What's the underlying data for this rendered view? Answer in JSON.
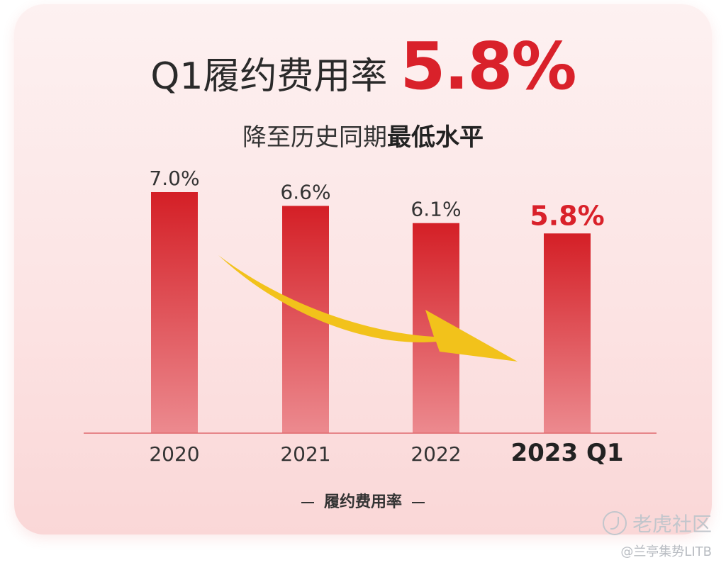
{
  "title": {
    "text": "Q1履约费用率",
    "value": "5.8%"
  },
  "subtitle": {
    "normal": "降至历史同期",
    "bold": "最低水平"
  },
  "legend_label": "履约费用率",
  "watermark": {
    "brand": "老虎社区",
    "credit": "@兰亭集势LITB"
  },
  "colors": {
    "bar_top": "#d41f26",
    "bar_bottom": "#ec8a8f",
    "highlight": "#d9212a",
    "arrow": "#f2c21b"
  },
  "chart_data": {
    "type": "bar",
    "categories": [
      "2020",
      "2021",
      "2022",
      "2023 Q1"
    ],
    "values": [
      7.0,
      6.6,
      6.1,
      5.8
    ],
    "labels": [
      "7.0%",
      "6.6%",
      "6.1%",
      "5.8%"
    ],
    "highlight_index": 3,
    "unit": "%",
    "ylim": [
      0,
      7.0
    ],
    "grid": false,
    "trend_arrow": "decreasing"
  }
}
